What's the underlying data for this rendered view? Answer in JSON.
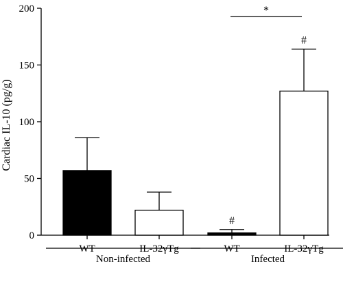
{
  "chart_data": {
    "type": "bar",
    "title": "",
    "xlabel": "",
    "ylabel": "Cardiac IL-10 (pg/g)",
    "ylim": [
      0,
      200
    ],
    "yticks": [
      0,
      50,
      100,
      150,
      200
    ],
    "grid": false,
    "legend": "none",
    "categories": [
      "WT",
      "IL-32γTg",
      "WT",
      "IL-32γTg"
    ],
    "groups": [
      {
        "label": "Non-infected",
        "categories": [
          0,
          1
        ]
      },
      {
        "label": "Infected",
        "categories": [
          2,
          3
        ]
      }
    ],
    "values": [
      57,
      22,
      2,
      127
    ],
    "errors": [
      29,
      16,
      3,
      37
    ],
    "fills": [
      "#000000",
      "#ffffff",
      "#000000",
      "#ffffff"
    ],
    "marks": [
      "",
      "",
      "#",
      "#"
    ],
    "significance": [
      {
        "from": 2,
        "to": 3,
        "label": "*"
      }
    ]
  }
}
